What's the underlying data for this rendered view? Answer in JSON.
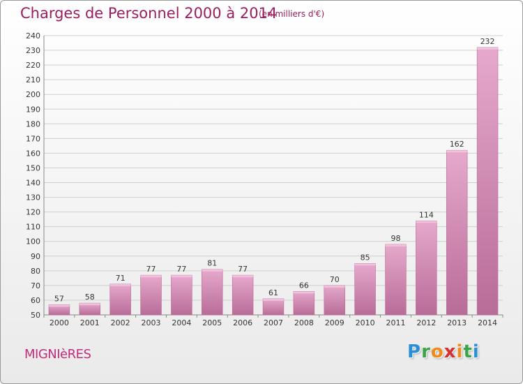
{
  "header": {
    "title": "Charges de Personnel 2000 à 2014",
    "subtitle": "(en milliers d'€)"
  },
  "footer": {
    "commune": "MIGNIèRES",
    "logo_letters": [
      "P",
      "r",
      "o",
      "x",
      "i",
      "t",
      "i"
    ],
    "logo_colors": [
      "#2a8fd6",
      "#3da34a",
      "#f08a1c",
      "#d4302e",
      "#f08a1c",
      "#3da34a",
      "#2a8fd6"
    ]
  },
  "chart_data": {
    "type": "bar",
    "categories": [
      "2000",
      "2001",
      "2002",
      "2003",
      "2004",
      "2005",
      "2006",
      "2007",
      "2008",
      "2009",
      "2010",
      "2011",
      "2012",
      "2013",
      "2014"
    ],
    "values": [
      57,
      58,
      71,
      77,
      77,
      81,
      77,
      61,
      66,
      70,
      85,
      98,
      114,
      162,
      232
    ],
    "data_labels": [
      "57",
      "58",
      "71",
      "77",
      "77",
      "81",
      "77",
      "61",
      "66",
      "70",
      "85",
      "98",
      "114",
      "162",
      "232"
    ],
    "title": "Charges de Personnel 2000 à 2014",
    "subtitle": "(en milliers d'€)",
    "xlabel": "",
    "ylabel": "",
    "ylim": [
      50,
      240
    ],
    "y_ticks": [
      50,
      60,
      70,
      80,
      90,
      100,
      110,
      120,
      130,
      140,
      150,
      160,
      170,
      180,
      190,
      200,
      210,
      220,
      230,
      240
    ],
    "grid": true,
    "bar_color": "#e0a0c4",
    "bar_edge_color": "#b96a95"
  }
}
